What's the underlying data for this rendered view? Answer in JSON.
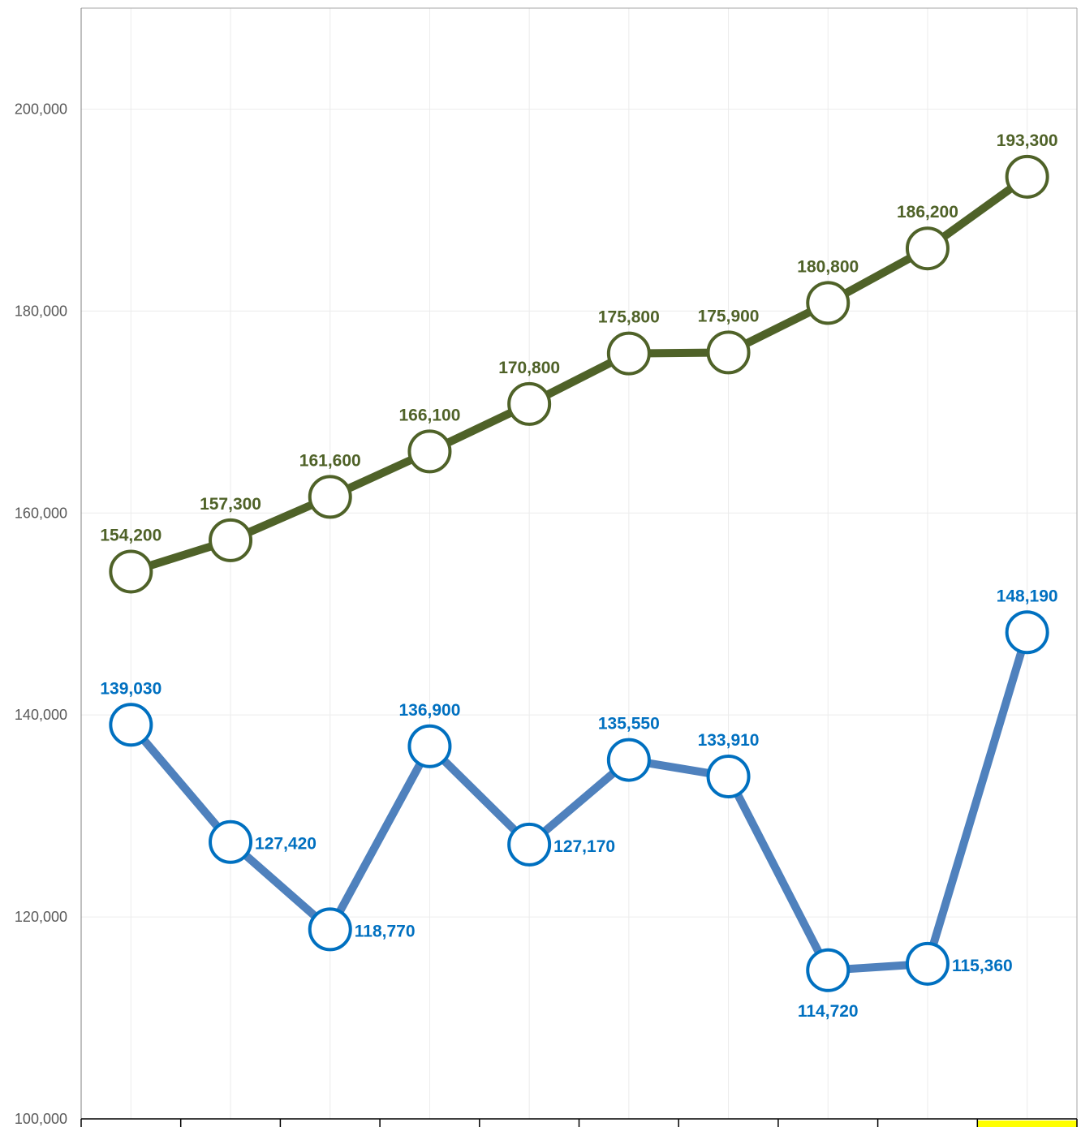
{
  "chart_data": {
    "type": "line",
    "categories": [
      "",
      "",
      "",
      "",
      "",
      "",
      "",
      "",
      "",
      ""
    ],
    "series": [
      {
        "color": "#4f6228",
        "label_color": "#4f6228",
        "values": [
          154200,
          157300,
          161600,
          166100,
          170800,
          175800,
          175900,
          180800,
          186200,
          193300
        ],
        "labels": [
          "154,200",
          "157,300",
          "161,600",
          "166,100",
          "170,800",
          "175,800",
          "175,900",
          "180,800",
          "186,200",
          "193,300"
        ],
        "label_positions": [
          "above",
          "above",
          "above",
          "above",
          "above",
          "above",
          "above",
          "above",
          "above",
          "above"
        ]
      },
      {
        "color": "#4f81bd",
        "label_color": "#0070c0",
        "marker_color": "#0070c0",
        "values": [
          139030,
          127420,
          118770,
          136900,
          127170,
          135550,
          133910,
          114720,
          115360,
          148190
        ],
        "labels": [
          "139,030",
          "127,420",
          "118,770",
          "136,900",
          "127,170",
          "135,550",
          "133,910",
          "114,720",
          "115,360",
          "148,190"
        ],
        "label_positions": [
          "above",
          "right",
          "right",
          "above",
          "right",
          "above",
          "above",
          "below",
          "right",
          "above"
        ]
      }
    ],
    "ylim": [
      100000,
      210000
    ],
    "yticks": [
      100000,
      120000,
      140000,
      160000,
      180000,
      200000
    ],
    "ytick_labels": [
      "100,000",
      "120,000",
      "140,000",
      "160,000",
      "180,000",
      "200,000"
    ],
    "grid": true,
    "highlighted_category_index": 9,
    "highlight_color": "#ffff00"
  }
}
